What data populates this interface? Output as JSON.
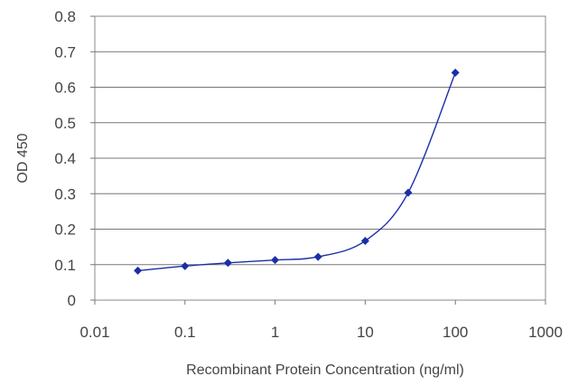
{
  "chart_data": {
    "type": "line",
    "title": "",
    "xlabel": "Recombinant Protein Concentration (ng/ml)",
    "ylabel": "OD 450",
    "x_scale": "log",
    "xlim": [
      0.01,
      1000
    ],
    "ylim": [
      0,
      0.8
    ],
    "x_ticks": [
      "0.01",
      "0.1",
      "1",
      "10",
      "100",
      "1000"
    ],
    "y_ticks": [
      "0",
      "0.1",
      "0.2",
      "0.3",
      "0.4",
      "0.5",
      "0.6",
      "0.7",
      "0.8"
    ],
    "grid": "horizontal",
    "legend": "none",
    "series": [
      {
        "x": [
          0.03,
          0.1,
          0.3,
          1,
          3,
          10,
          30,
          100
        ],
        "y": [
          0.083,
          0.096,
          0.105,
          0.113,
          0.122,
          0.167,
          0.303,
          0.641
        ],
        "color": "#1a2ea8"
      }
    ]
  }
}
